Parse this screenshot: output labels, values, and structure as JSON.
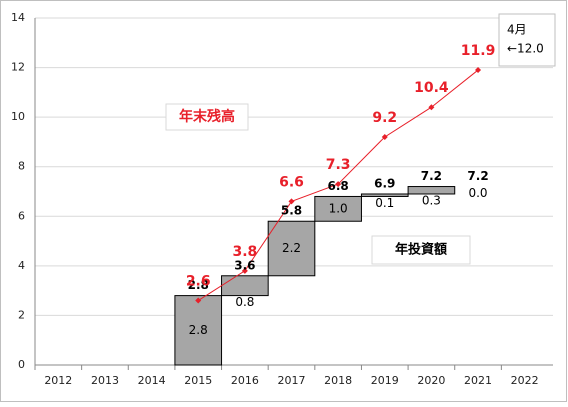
{
  "chart_data": {
    "type": "waterfall",
    "categories": [
      "2012",
      "2013",
      "2014",
      "2015",
      "2016",
      "2017",
      "2018",
      "2019",
      "2020",
      "2021",
      "2022"
    ],
    "totals": {
      "values": [
        null,
        null,
        null,
        2.8,
        3.6,
        5.8,
        6.8,
        6.9,
        7.2,
        7.2,
        null
      ]
    },
    "increments": {
      "values": [
        null,
        null,
        null,
        2.8,
        0.8,
        2.2,
        1.0,
        0.1,
        0.3,
        0.0,
        null
      ],
      "value_labels": [
        null,
        null,
        null,
        "2.8",
        "0.8",
        "2.2",
        "1.0",
        "0.1",
        "0.3",
        "0.0",
        null
      ],
      "color": "#a6a6a6"
    },
    "balance": {
      "values": [
        null,
        null,
        null,
        2.6,
        3.8,
        6.6,
        7.3,
        9.2,
        10.4,
        11.9,
        null
      ],
      "color": "#e8202a"
    },
    "ylim": [
      0,
      14
    ],
    "yticks": [
      0,
      2,
      4,
      6,
      8,
      10,
      12,
      14
    ],
    "grid": true,
    "balance_annotation": "年末残高",
    "increment_annotation": "年投資額",
    "note_lines": [
      "4月",
      "←12.0"
    ]
  }
}
